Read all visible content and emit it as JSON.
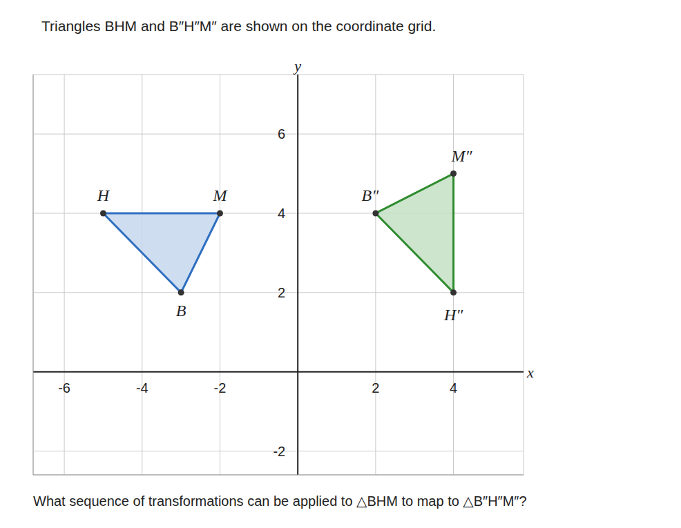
{
  "chart_data": {
    "type": "scatter",
    "title": "Triangles BHM and B″H″M″ are shown on the coordinate grid.",
    "annotations": [
      "What sequence of transformations can be applied to △BHM to map to △B″H″M″?"
    ],
    "x_label": "x",
    "y_label": "y",
    "xlim": [
      -6.8,
      5.8
    ],
    "ylim": [
      -2.6,
      7.5
    ],
    "xticks": [
      -6,
      -4,
      -2,
      2,
      4
    ],
    "yticks": [
      -2,
      2,
      4,
      6
    ],
    "grid": true,
    "series": [
      {
        "labels": [
          "B",
          "H",
          "M"
        ],
        "x": [
          -3,
          -5,
          -2
        ],
        "y": [
          2,
          4,
          4
        ],
        "color": "#2f6fc0",
        "marker": "circle",
        "line_style": "solid"
      },
      {
        "labels": [
          "B″",
          "H″",
          "M″"
        ],
        "x": [
          2,
          4,
          4
        ],
        "y": [
          4,
          2,
          5
        ],
        "color": "#2e8b2e",
        "marker": "circle",
        "line_style": "solid"
      }
    ]
  }
}
